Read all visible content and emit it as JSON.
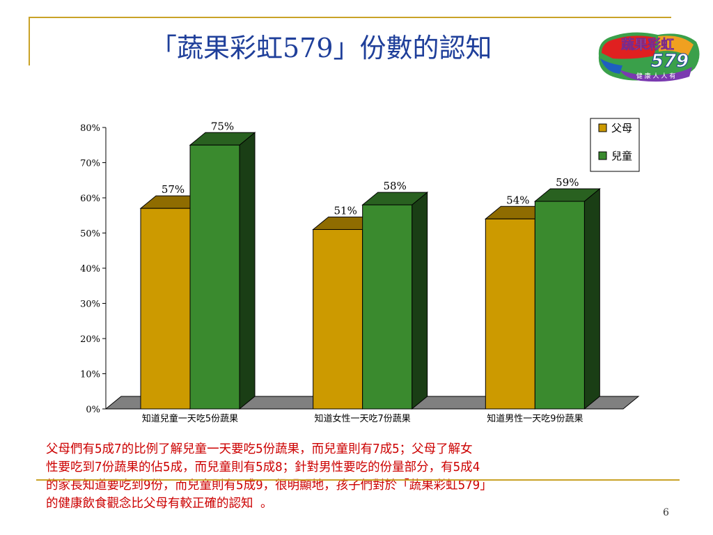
{
  "slide": {
    "title": "「蔬果彩虹579」份數的認知",
    "page_number": "6"
  },
  "logo": {
    "line1": "蔬果彩虹",
    "line2": "579",
    "line3": "健 康 人 人 有"
  },
  "chart_data": {
    "type": "bar",
    "categories": [
      "知道兒童一天吃5份蔬果",
      "知道女性一天吃7份蔬果",
      "知道男性一天吃9份蔬果"
    ],
    "series": [
      {
        "name": "父母",
        "values": [
          57,
          51,
          54
        ],
        "labels": [
          "57%",
          "51%",
          "54%"
        ],
        "color": "#cc9a00"
      },
      {
        "name": "兒童",
        "values": [
          75,
          58,
          59
        ],
        "labels": [
          "75%",
          "58%",
          "59%"
        ],
        "color": "#3a8a2e"
      }
    ],
    "yticks": [
      "0%",
      "10%",
      "20%",
      "30%",
      "40%",
      "50%",
      "60%",
      "70%",
      "80%"
    ],
    "ylim": [
      0,
      80
    ],
    "legend": "top-right",
    "style": "3d"
  },
  "body_text": [
    "父母們有5成7的比例了解兒童一天要吃5份蔬果，而兒童則有7成5；父母了解女",
    "性要吃到7份蔬果的佔5成，而兒童則有5成8；針對男性要吃的份量部分，有5成4",
    "的家長知道要吃到9份，而兒童則有5成9，很明顯地，孩子們對於「蔬果彩虹579」",
    "的健康飲食觀念比父母有較正確的認知 。"
  ]
}
